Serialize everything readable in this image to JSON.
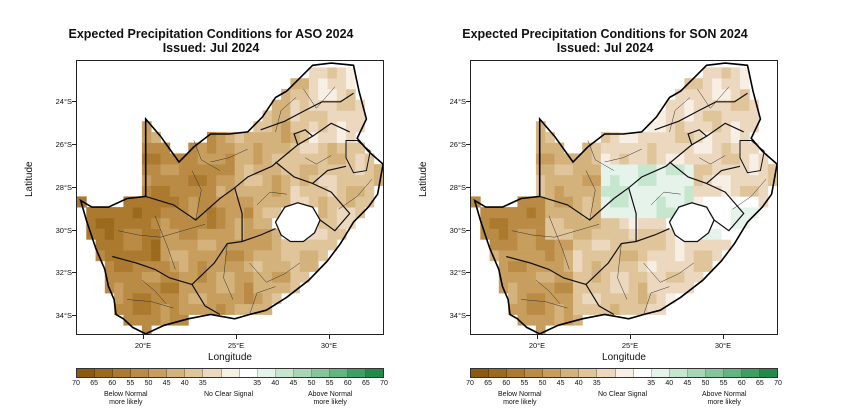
{
  "panels": [
    {
      "id": "aso",
      "title_line1": "Expected Precipitation Conditions for ASO 2024",
      "title_line2": "Issued: Jul 2024"
    },
    {
      "id": "son",
      "title_line1": "Expected Precipitation Conditions for SON 2024",
      "title_line2": "Issued: Jul 2024"
    }
  ],
  "axes": {
    "ylabel": "Latitude",
    "xlabel": "Longitude",
    "lat_ticks": [
      "24°S",
      "26°S",
      "28°S",
      "30°S",
      "32°S",
      "34°S"
    ],
    "lon_ticks": [
      "20°E",
      "25°E",
      "30°E"
    ]
  },
  "legend": {
    "tick_labels": [
      "70",
      "65",
      "60",
      "55",
      "50",
      "45",
      "40",
      "35",
      "35",
      "40",
      "45",
      "50",
      "55",
      "60",
      "65",
      "70"
    ],
    "below_caption_1": "Below Normal",
    "below_caption_2": "more likely",
    "neutral_caption": "No Clear Signal",
    "above_caption_1": "Above Normal",
    "above_caption_2": "more likely",
    "colors": [
      "#8c5a0f",
      "#9c6a1c",
      "#ab7a2e",
      "#ba8b45",
      "#c79e5d",
      "#d4b27b",
      "#e0c59a",
      "#ebd8bf",
      "#f7efe4",
      "#ffffff",
      "#e6f3ea",
      "#c7e6d0",
      "#a6d6b5",
      "#84c69a",
      "#62b57f",
      "#3f9f62",
      "#238b4a"
    ]
  },
  "chart_data": [
    {
      "type": "heatmap",
      "title": "Expected Precipitation Conditions for ASO 2024",
      "subtitle": "Issued: Jul 2024",
      "xlabel": "Longitude",
      "ylabel": "Latitude",
      "xlim": [
        16.3,
        32.9
      ],
      "ylim": [
        -34.9,
        -22.1
      ],
      "category_scale": [
        "Below Normal 70",
        "65",
        "60",
        "55",
        "50",
        "45",
        "40",
        "35",
        "No Clear Signal",
        "35",
        "40",
        "45",
        "50",
        "55",
        "60",
        "65",
        "Above Normal 70"
      ],
      "cells_note": "Mostly below-normal 40–60% across west and interior; strongest (55–65) in the west/northwest; weaker 35–40 in the east and northeast.",
      "regions": [
        {
          "lon": [
            17.0,
            21.0
          ],
          "lat": [
            -31.0,
            -28.5
          ],
          "value": "Below Normal 60"
        },
        {
          "lon": [
            19.0,
            24.0
          ],
          "lat": [
            -30.0,
            -26.0
          ],
          "value": "Below Normal 55"
        },
        {
          "lon": [
            18.0,
            22.0
          ],
          "lat": [
            -34.0,
            -31.0
          ],
          "value": "Below Normal 50"
        },
        {
          "lon": [
            22.0,
            26.0
          ],
          "lat": [
            -33.0,
            -29.0
          ],
          "value": "Below Normal 45"
        },
        {
          "lon": [
            24.0,
            28.0
          ],
          "lat": [
            -29.0,
            -25.0
          ],
          "value": "Below Normal 40"
        },
        {
          "lon": [
            27.0,
            32.0
          ],
          "lat": [
            -26.0,
            -22.5
          ],
          "value": "Below Normal 35"
        },
        {
          "lon": [
            28.0,
            32.0
          ],
          "lat": [
            -30.0,
            -26.5
          ],
          "value": "Below Normal 35"
        }
      ]
    },
    {
      "type": "heatmap",
      "title": "Expected Precipitation Conditions for SON 2024",
      "subtitle": "Issued: Jul 2024",
      "xlabel": "Longitude",
      "ylabel": "Latitude",
      "xlim": [
        16.3,
        32.9
      ],
      "ylim": [
        -34.9,
        -22.1
      ],
      "category_scale": [
        "Below Normal 70",
        "65",
        "60",
        "55",
        "50",
        "45",
        "40",
        "35",
        "No Clear Signal",
        "35",
        "40",
        "45",
        "50",
        "55",
        "60",
        "65",
        "Above Normal 70"
      ],
      "cells_note": "Below-normal 45–55 in the west; weak below-normal 35–40 across south and north; above-normal 35–40 over central interior (Free State/North West) and small area in the east.",
      "regions": [
        {
          "lon": [
            17.0,
            20.5
          ],
          "lat": [
            -31.0,
            -28.5
          ],
          "value": "Below Normal 55"
        },
        {
          "lon": [
            18.0,
            22.0
          ],
          "lat": [
            -34.0,
            -30.5
          ],
          "value": "Below Normal 45"
        },
        {
          "lon": [
            22.0,
            26.0
          ],
          "lat": [
            -33.0,
            -30.0
          ],
          "value": "Below Normal 40"
        },
        {
          "lon": [
            23.5,
            28.5
          ],
          "lat": [
            -29.5,
            -27.0
          ],
          "value": "Above Normal 35"
        },
        {
          "lon": [
            26.0,
            28.0
          ],
          "lat": [
            -28.5,
            -27.5
          ],
          "value": "Above Normal 40"
        },
        {
          "lon": [
            29.0,
            31.5
          ],
          "lat": [
            -30.0,
            -28.5
          ],
          "value": "Above Normal 35"
        },
        {
          "lon": [
            26.5,
            32.0
          ],
          "lat": [
            -25.5,
            -22.5
          ],
          "value": "Below Normal 35"
        }
      ]
    }
  ]
}
